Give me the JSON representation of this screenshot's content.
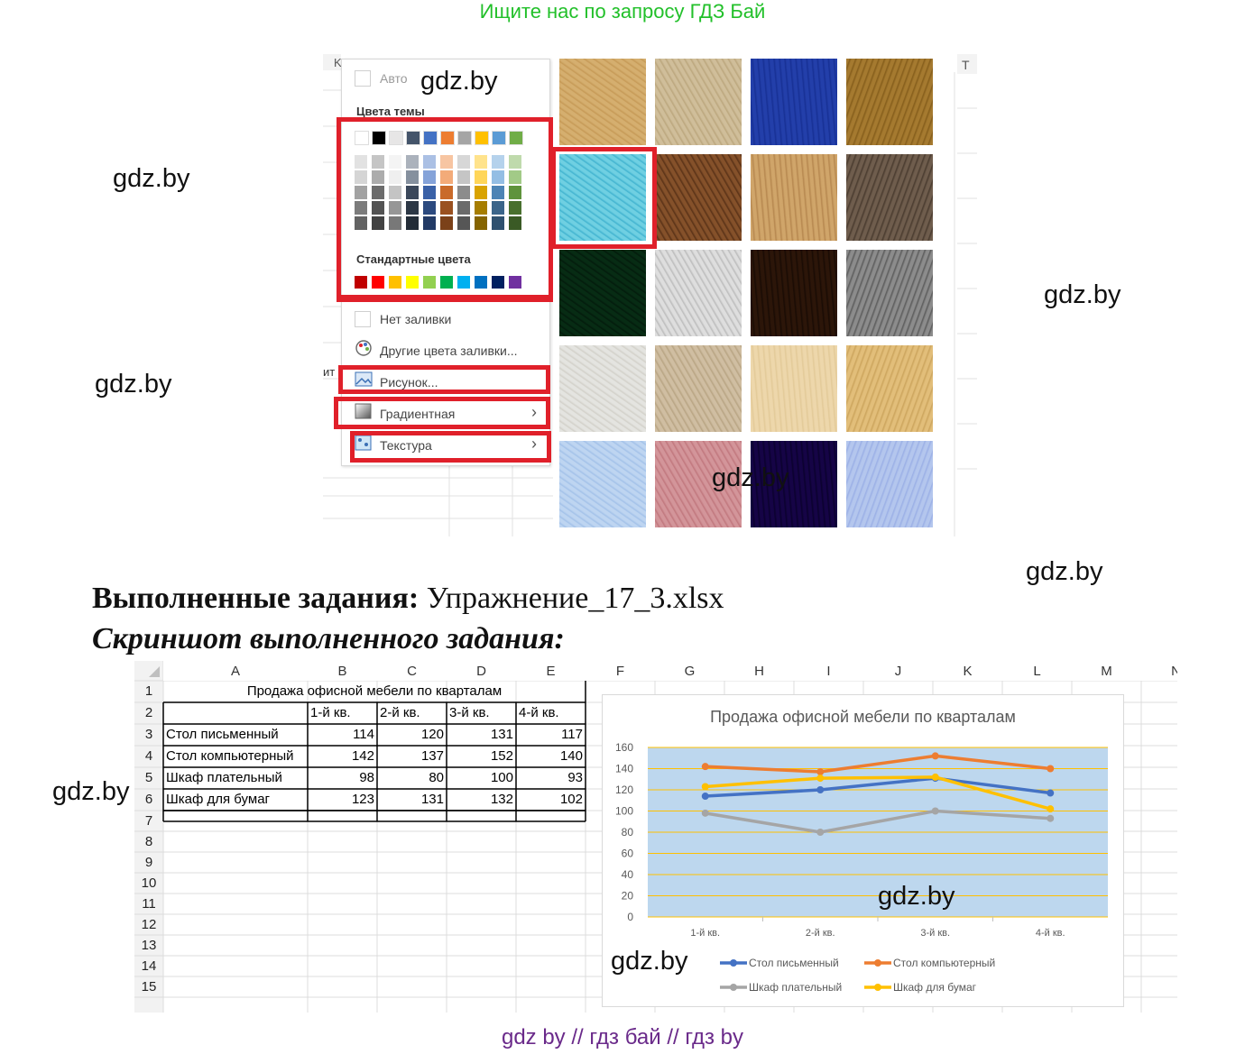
{
  "banner": "Ищите нас по запросу ГДЗ Бай",
  "watermark": "gdz.by",
  "footer": "gdz by  //  гдз бай  //  гдз by",
  "fill_menu": {
    "col_letter_left": "K",
    "col_letter_right": "T",
    "side_fragment": "ит",
    "auto": "Авто",
    "theme_colors": "Цвета темы",
    "standard_colors": "Стандартные цвета",
    "no_fill": "Нет заливки",
    "more_colors": "Другие цвета заливки...",
    "picture": "Рисунок...",
    "gradient": "Градиентная",
    "texture": "Текстура",
    "theme_row": [
      "#ffffff",
      "#000000",
      "#e7e6e6",
      "#44546a",
      "#4472c4",
      "#ed7d31",
      "#a5a5a5",
      "#ffc000",
      "#5b9bd5",
      "#70ad47"
    ],
    "standard_row": [
      "#c00000",
      "#ff0000",
      "#ffc000",
      "#ffff00",
      "#92d050",
      "#00b050",
      "#00b0f0",
      "#0070c0",
      "#002060",
      "#7030a0"
    ]
  },
  "heading": {
    "bold": "Выполненные задания:",
    "rest": " Упражнение_17_3.xlsx",
    "sub": "Скриншот выполненного задания:"
  },
  "sheet": {
    "columns": [
      "A",
      "B",
      "C",
      "D",
      "E",
      "F",
      "G",
      "H",
      "I",
      "J",
      "K",
      "L",
      "M",
      "N"
    ],
    "rows": [
      "1",
      "2",
      "3",
      "4",
      "5",
      "6",
      "7",
      "8",
      "9",
      "10",
      "11",
      "12",
      "13",
      "14",
      "15"
    ],
    "table_title": "Продажа офисной мебели по кварталам",
    "quarters": [
      "1-й кв.",
      "2-й кв.",
      "3-й кв.",
      "4-й кв."
    ],
    "items": [
      {
        "name": "Стол письменный",
        "values": [
          "114",
          "120",
          "131",
          "117"
        ]
      },
      {
        "name": "Стол компьютерный",
        "values": [
          "142",
          "137",
          "152",
          "140"
        ]
      },
      {
        "name": "Шкаф плательный",
        "values": [
          "98",
          "80",
          "100",
          "93"
        ]
      },
      {
        "name": "Шкаф для бумаг",
        "values": [
          "123",
          "131",
          "132",
          "102"
        ]
      }
    ]
  },
  "chart_data": {
    "type": "line",
    "title": "Продажа офисной мебели по кварталам",
    "categories": [
      "1-й кв.",
      "2-й кв.",
      "3-й кв.",
      "4-й кв."
    ],
    "yticks": [
      "0",
      "20",
      "40",
      "60",
      "80",
      "100",
      "120",
      "140",
      "160"
    ],
    "ylim": [
      0,
      160
    ],
    "grid": true,
    "legend_position": "bottom",
    "series": [
      {
        "name": "Стол письменный",
        "values": [
          114,
          120,
          131,
          117
        ],
        "color": "#4472c4"
      },
      {
        "name": "Стол компьютерный",
        "values": [
          142,
          137,
          152,
          140
        ],
        "color": "#ed7d31"
      },
      {
        "name": "Шкаф плательный",
        "values": [
          98,
          80,
          100,
          93
        ],
        "color": "#a5a5a5"
      },
      {
        "name": "Шкаф для бумаг",
        "values": [
          123,
          131,
          132,
          102
        ],
        "color": "#ffc000"
      }
    ],
    "plot_bg": "#bdd7ee",
    "gridline_color": "#ffc000"
  }
}
